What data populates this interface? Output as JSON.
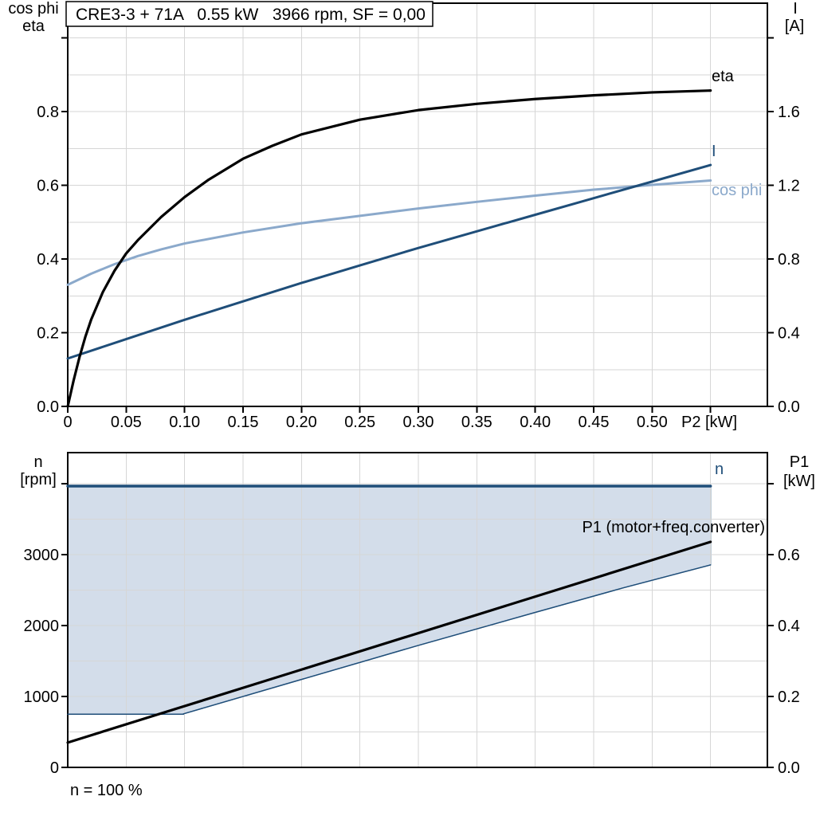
{
  "title": "CRE3-3 + 71A   0.55 kW   3966 rpm, SF = 0,00",
  "colors": {
    "curve_black": "#000000",
    "dark_blue": "#1F4E79",
    "light_blue": "#8BA9CB",
    "shade_fill": "#D3DDEA",
    "grid": "#D6D6D6",
    "axis": "#000000",
    "background": "#FFFFFF"
  },
  "chart_data": [
    {
      "type": "line",
      "title": "CRE3-3 + 71A   0.55 kW   3966 rpm, SF = 0,00",
      "x_axis": {
        "label": "P2 [kW]",
        "xlim": [
          0,
          0.6
        ],
        "grid": true,
        "ticks": [
          {
            "label": "0",
            "v": 0
          },
          {
            "label": "0.05",
            "v": 0.05
          },
          {
            "label": "0.10",
            "v": 0.1
          },
          {
            "label": "0.15",
            "v": 0.15
          },
          {
            "label": "0.20",
            "v": 0.2
          },
          {
            "label": "0.25",
            "v": 0.25
          },
          {
            "label": "0.30",
            "v": 0.3
          },
          {
            "label": "0.35",
            "v": 0.35
          },
          {
            "label": "0.40",
            "v": 0.4
          },
          {
            "label": "0.45",
            "v": 0.45
          },
          {
            "label": "0.50",
            "v": 0.5
          },
          {
            "label": "",
            "v": 0.55
          }
        ]
      },
      "left_axis": {
        "title_line1": "cos phi",
        "title_line2": "eta",
        "ylim": [
          0,
          1.1
        ],
        "ticks": [
          {
            "label": "0.0",
            "v": 0
          },
          {
            "label": "0.2",
            "v": 0.2
          },
          {
            "label": "0.4",
            "v": 0.4
          },
          {
            "label": "0.6",
            "v": 0.6
          },
          {
            "label": "0.8",
            "v": 0.8
          },
          {
            "label": "",
            "v": 1.0
          }
        ]
      },
      "right_axis": {
        "title_line1": "I",
        "title_line2": "[A]",
        "ylim": [
          0,
          2.2
        ],
        "ticks": [
          {
            "label": "0.0",
            "v": 0
          },
          {
            "label": "0.4",
            "v": 0.4
          },
          {
            "label": "0.8",
            "v": 0.8
          },
          {
            "label": "1.2",
            "v": 1.2
          },
          {
            "label": "1.6",
            "v": 1.6
          },
          {
            "label": "",
            "v": 2.0
          }
        ]
      },
      "series": [
        {
          "name": "cos-phi",
          "label": "cos phi",
          "axis": "left",
          "color": "#8BA9CB",
          "width": 3,
          "points": [
            [
              0,
              0.33
            ],
            [
              0.02,
              0.36
            ],
            [
              0.04,
              0.386
            ],
            [
              0.06,
              0.408
            ],
            [
              0.08,
              0.426
            ],
            [
              0.1,
              0.442
            ],
            [
              0.15,
              0.472
            ],
            [
              0.2,
              0.497
            ],
            [
              0.25,
              0.517
            ],
            [
              0.3,
              0.537
            ],
            [
              0.35,
              0.555
            ],
            [
              0.4,
              0.572
            ],
            [
              0.45,
              0.588
            ],
            [
              0.5,
              0.601
            ],
            [
              0.55,
              0.613
            ]
          ]
        },
        {
          "name": "current",
          "label": "I",
          "axis": "right",
          "color": "#1F4E79",
          "width": 3,
          "points": [
            [
              0,
              0.26
            ],
            [
              0.05,
              0.365
            ],
            [
              0.1,
              0.47
            ],
            [
              0.15,
              0.57
            ],
            [
              0.2,
              0.67
            ],
            [
              0.25,
              0.765
            ],
            [
              0.3,
              0.86
            ],
            [
              0.35,
              0.95
            ],
            [
              0.4,
              1.04
            ],
            [
              0.45,
              1.13
            ],
            [
              0.5,
              1.22
            ],
            [
              0.55,
              1.31
            ]
          ]
        },
        {
          "name": "eta",
          "label": "eta",
          "axis": "left",
          "color": "#000000",
          "width": 3.2,
          "points": [
            [
              0,
              0
            ],
            [
              0.005,
              0.07
            ],
            [
              0.01,
              0.133
            ],
            [
              0.015,
              0.188
            ],
            [
              0.02,
              0.235
            ],
            [
              0.03,
              0.31
            ],
            [
              0.04,
              0.368
            ],
            [
              0.05,
              0.415
            ],
            [
              0.06,
              0.451
            ],
            [
              0.08,
              0.514
            ],
            [
              0.1,
              0.568
            ],
            [
              0.12,
              0.614
            ],
            [
              0.15,
              0.672
            ],
            [
              0.175,
              0.707
            ],
            [
              0.2,
              0.738
            ],
            [
              0.25,
              0.778
            ],
            [
              0.3,
              0.804
            ],
            [
              0.35,
              0.821
            ],
            [
              0.4,
              0.834
            ],
            [
              0.45,
              0.844
            ],
            [
              0.5,
              0.852
            ],
            [
              0.55,
              0.857
            ]
          ]
        }
      ]
    },
    {
      "type": "line",
      "x_axis": {
        "xlim": [
          0,
          0.6
        ],
        "shared_with_top_chart": true,
        "grid": true
      },
      "left_axis": {
        "title_line1": "n",
        "title_line2": "[rpm]",
        "ylim": [
          0,
          4400
        ],
        "ticks": [
          {
            "label": "0",
            "v": 0
          },
          {
            "label": "1000",
            "v": 1000
          },
          {
            "label": "2000",
            "v": 2000
          },
          {
            "label": "3000",
            "v": 3000
          },
          {
            "label": "",
            "v": 4000
          }
        ]
      },
      "right_axis": {
        "title_line1": "P1",
        "title_line2": "[kW]",
        "ylim": [
          0,
          0.88
        ],
        "ticks": [
          {
            "label": "0.0",
            "v": 0
          },
          {
            "label": "0.2",
            "v": 0.2
          },
          {
            "label": "0.4",
            "v": 0.4
          },
          {
            "label": "0.6",
            "v": 0.6
          },
          {
            "label": "",
            "v": 0.8
          }
        ]
      },
      "footer": "n = 100 %",
      "shade_fill": "#D3DDEA",
      "series": [
        {
          "name": "speed",
          "label": "n",
          "axis": "rpm",
          "color": "#1F4E79",
          "width": 3.5,
          "points": [
            [
              0,
              3966
            ],
            [
              0.55,
              3966
            ]
          ]
        },
        {
          "name": "speed-min",
          "label": "",
          "axis": "rpm",
          "color": "#1F4E79",
          "width": 1.5,
          "points": [
            [
              0,
              750
            ],
            [
              0.099,
              750
            ]
          ]
        },
        {
          "name": "p1-min",
          "label": "",
          "axis": "kw",
          "color": "#1F4E79",
          "width": 1.5,
          "points": [
            [
              0.099,
              0.151
            ],
            [
              0.2,
              0.248
            ],
            [
              0.3,
              0.344
            ],
            [
              0.4,
              0.437
            ],
            [
              0.475,
              0.506
            ],
            [
              0.55,
              0.571
            ]
          ]
        },
        {
          "name": "p1",
          "label": "P1 (motor+freq.converter)",
          "axis": "kw",
          "color": "#000000",
          "width": 3.2,
          "points": [
            [
              0,
              0.07
            ],
            [
              0.55,
              0.636
            ]
          ]
        }
      ]
    }
  ]
}
